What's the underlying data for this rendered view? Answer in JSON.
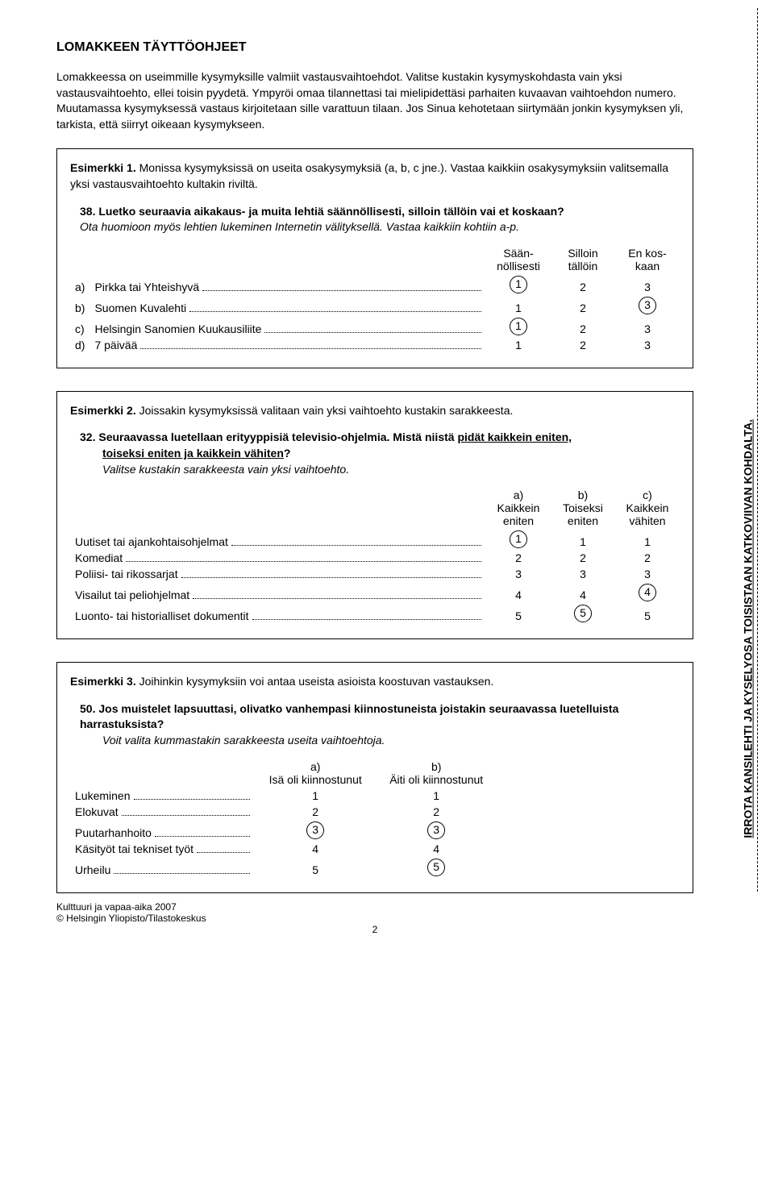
{
  "title": "LOMAKKEEN TÄYTTÖOHJEET",
  "intro": "Lomakkeessa on useimmille kysymyksille valmiit vastausvaihtoehdot. Valitse kustakin kysymyskohdasta vain yksi vastausvaihtoehto, ellei toisin pyydetä. Ympyröi omaa tilannettasi tai mielipidettäsi parhaiten kuvaavan vaihtoehdon numero. Muutamassa kysymyksessä vastaus kirjoitetaan sille varattuun tilaan. Jos Sinua kehotetaan siirtymään jonkin kysymyksen yli, tarkista, että siirryt oikeaan kysymykseen.",
  "ex1": {
    "lead": "Esimerkki 1.",
    "text": "Monissa kysymyksissä on useita osakysymyksiä (a, b, c jne.). Vastaa kaikkiin osakysymyksiin valitsemalla yksi vastausvaihtoehto kultakin riviltä.",
    "qn": "38.",
    "qt": "Luetko seuraavia aikakaus- ja muita lehtiä säännöllisesti, silloin tällöin vai et koskaan?",
    "qi": "Ota huomioon myös lehtien lukeminen Internetin välityksellä. Vastaa kaikkiin kohtiin a-p.",
    "cols": [
      "Sään-\nnöllisesti",
      "Silloin\ntällöin",
      "En kos-\nkaan"
    ],
    "rows": [
      {
        "lab": "a)",
        "item": "Pirkka tai Yhteishyvä",
        "vals": [
          "1",
          "2",
          "3"
        ],
        "circled": [
          0
        ]
      },
      {
        "lab": "b)",
        "item": "Suomen Kuvalehti",
        "vals": [
          "1",
          "2",
          "3"
        ],
        "circled": [
          2
        ]
      },
      {
        "lab": "c)",
        "item": "Helsingin Sanomien Kuukausiliite",
        "vals": [
          "1",
          "2",
          "3"
        ],
        "circled": [
          0
        ]
      },
      {
        "lab": "d)",
        "item": "7 päivää",
        "vals": [
          "1",
          "2",
          "3"
        ],
        "circled": []
      }
    ]
  },
  "ex2": {
    "lead": "Esimerkki 2.",
    "text": "Joissakin kysymyksissä valitaan vain yksi vaihtoehto kustakin sarakkeesta.",
    "qn": "32.",
    "qt1": "Seuraavassa luetellaan erityyppisiä televisio-ohjelmia. Mistä niistä ",
    "qt_u1": "pidät kaikkein eniten,",
    "qt_u2": "toiseksi eniten ja kaikkein vähiten",
    "qt_q": "?",
    "qi": "Valitse kustakin sarakkeesta vain yksi vaihtoehto.",
    "cols": [
      "a)\nKaikkein\neniten",
      "b)\nToiseksi\neniten",
      "c)\nKaikkein\nvähiten"
    ],
    "rows": [
      {
        "item": "Uutiset tai ajankohtaisohjelmat",
        "vals": [
          "1",
          "1",
          "1"
        ],
        "circled": [
          0
        ]
      },
      {
        "item": "Komediat",
        "vals": [
          "2",
          "2",
          "2"
        ],
        "circled": []
      },
      {
        "item": "Poliisi- tai rikossarjat",
        "vals": [
          "3",
          "3",
          "3"
        ],
        "circled": []
      },
      {
        "item": "Visailut tai peliohjelmat",
        "vals": [
          "4",
          "4",
          "4"
        ],
        "circled": [
          2
        ]
      },
      {
        "item": "Luonto- tai historialliset dokumentit",
        "vals": [
          "5",
          "5",
          "5"
        ],
        "circled": [
          1
        ]
      }
    ]
  },
  "ex3": {
    "lead": "Esimerkki 3.",
    "text": "Joihinkin kysymyksiin voi antaa useista asioista koostuvan vastauksen.",
    "qn": "50.",
    "qt": "Jos muistelet lapsuuttasi, olivatko vanhempasi kiinnostuneista joistakin seuraavassa luetelluista harrastuksista?",
    "qi": "Voit valita kummastakin sarakkeesta useita vaihtoehtoja.",
    "cols": [
      "a)\nIsä oli kiinnostunut",
      "b)\nÄiti oli kiinnostunut"
    ],
    "rows": [
      {
        "item": "Lukeminen",
        "vals": [
          "1",
          "1"
        ],
        "circled": []
      },
      {
        "item": "Elokuvat",
        "vals": [
          "2",
          "2"
        ],
        "circled": []
      },
      {
        "item": "Puutarhanhoito",
        "vals": [
          "3",
          "3"
        ],
        "circled": [
          0,
          1
        ]
      },
      {
        "item": "Käsityöt tai tekniset työt",
        "vals": [
          "4",
          "4"
        ],
        "circled": []
      },
      {
        "item": "Urheilu",
        "vals": [
          "5",
          "5"
        ],
        "circled": [
          1
        ]
      }
    ]
  },
  "side": "IRROTA KANSILEHTI JA KYSELYOSA TOISISTAAN KATKOVIIVAN KOHDALTA.",
  "footer": {
    "line1": "Kulttuuri ja vapaa-aika 2007",
    "line2": "© Helsingin Yliopisto/Tilastokeskus",
    "page": "2"
  }
}
